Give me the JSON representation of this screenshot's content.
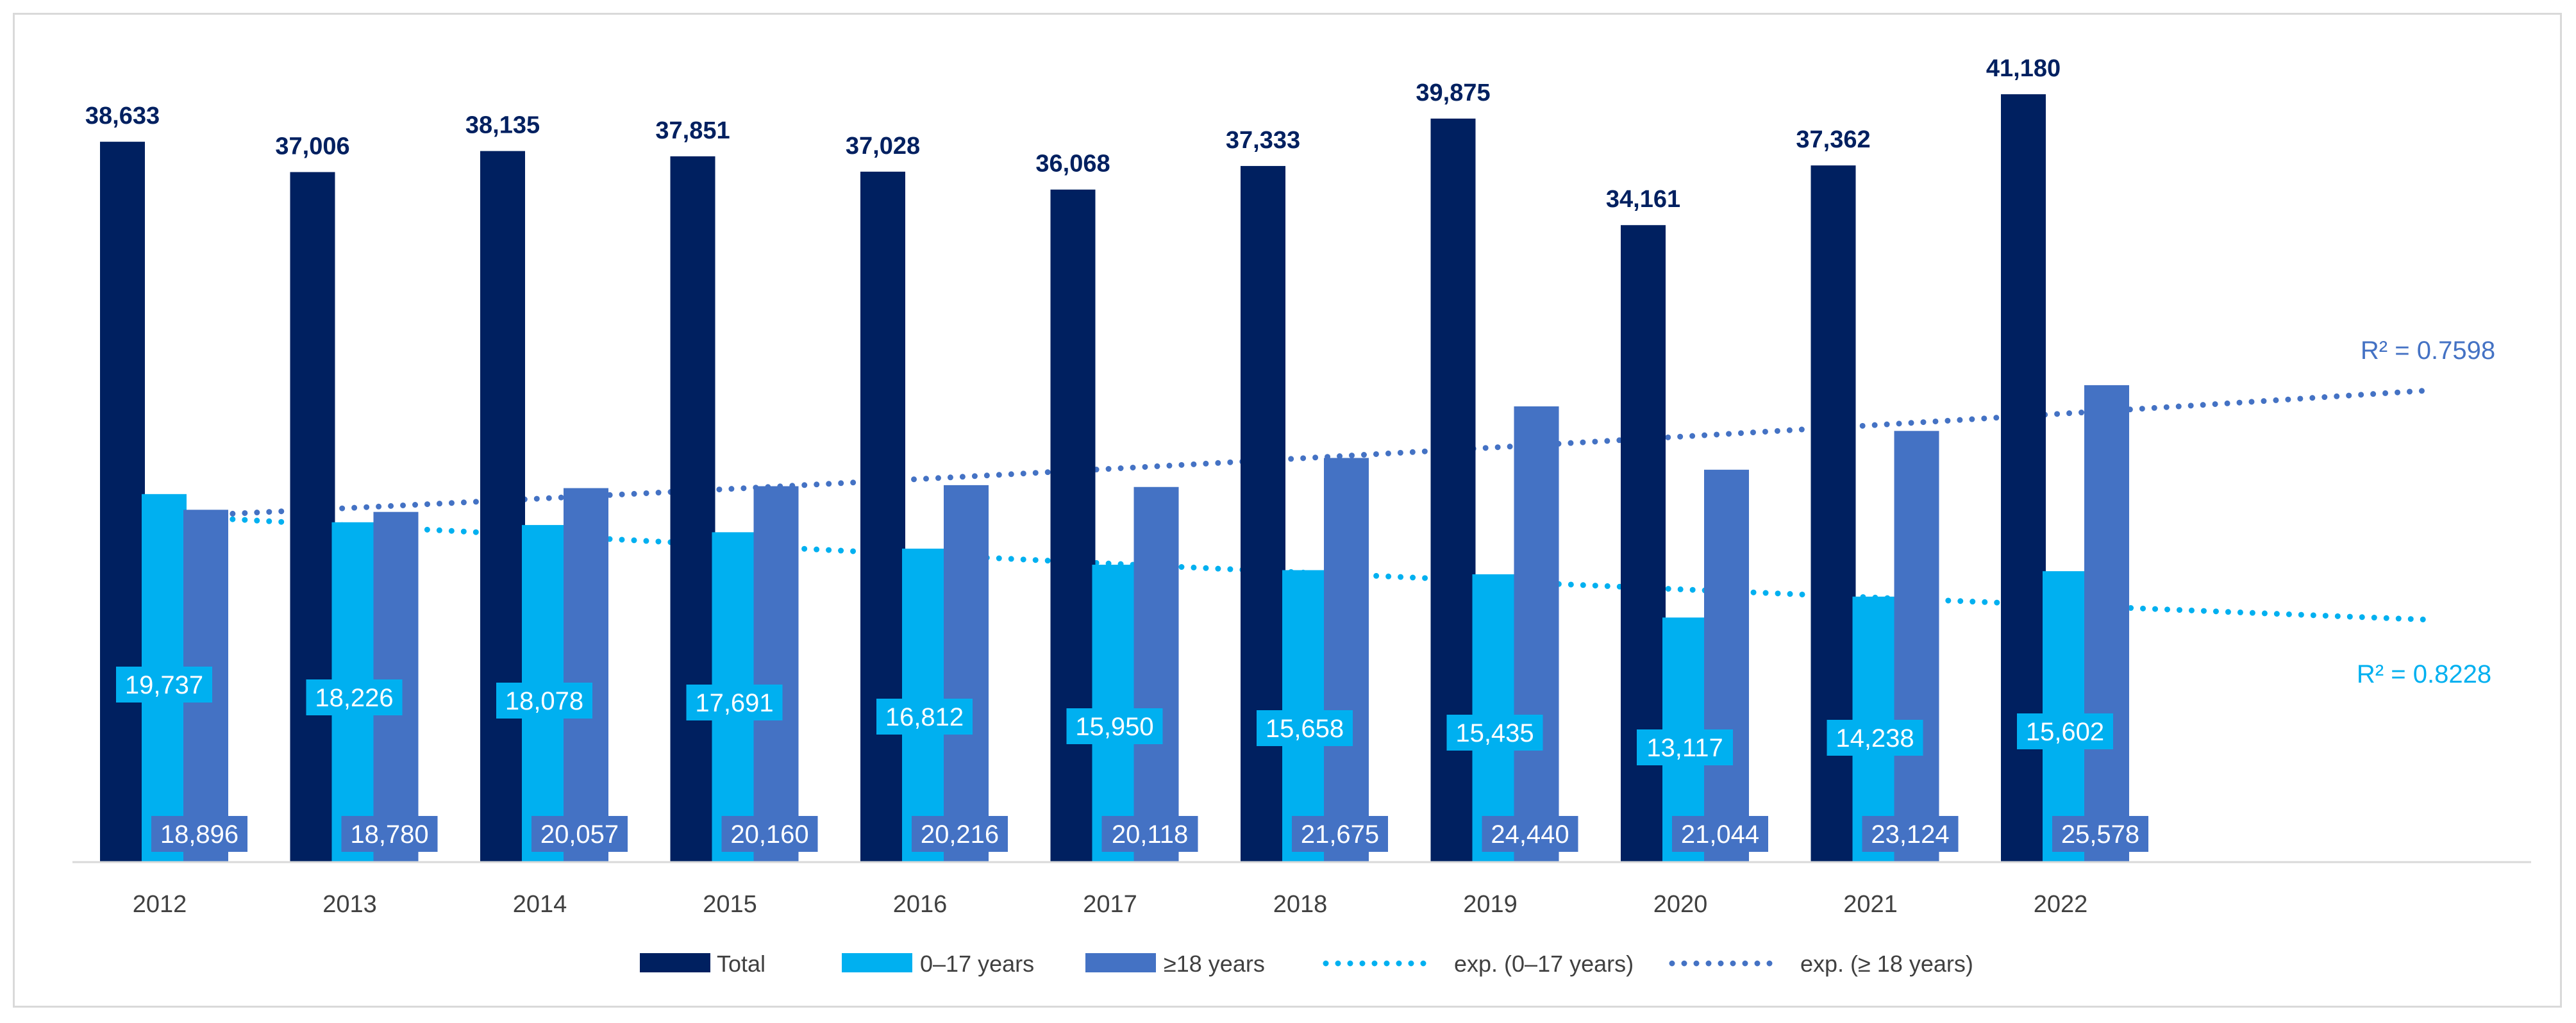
{
  "chart_data": {
    "type": "bar",
    "title": "",
    "xlabel": "",
    "ylabel": "",
    "ylim": [
      0,
      44000
    ],
    "grid": false,
    "legend_position": "bottom",
    "categories": [
      "2012",
      "2013",
      "2014",
      "2015",
      "2016",
      "2017",
      "2018",
      "2019",
      "2020",
      "2021",
      "2022"
    ],
    "series": [
      {
        "name": "Total",
        "color": "#002060",
        "values": [
          38633,
          37006,
          38135,
          37851,
          37028,
          36068,
          37333,
          39875,
          34161,
          37362,
          41180
        ],
        "labels": [
          "38,633",
          "37,006",
          "38,135",
          "37,851",
          "37,028",
          "36,068",
          "37,333",
          "39,875",
          "34,161",
          "37,362",
          "41,180"
        ]
      },
      {
        "name": "0–17 years",
        "color": "#00B0F0",
        "values": [
          19737,
          18226,
          18078,
          17691,
          16812,
          15950,
          15658,
          15435,
          13117,
          14238,
          15602
        ],
        "labels": [
          "19,737",
          "18,226",
          "18,078",
          "17,691",
          "16,812",
          "15,950",
          "15,658",
          "15,435",
          "13,117",
          "14,238",
          "15,602"
        ]
      },
      {
        "name": "≥18 years",
        "color": "#4472C4",
        "values": [
          18896,
          18780,
          20057,
          20160,
          20216,
          20118,
          21675,
          24440,
          21044,
          23124,
          25578
        ],
        "labels": [
          "18,896",
          "18,780",
          "20,057",
          "20,160",
          "20,216",
          "20,118",
          "21,675",
          "24,440",
          "21,044",
          "23,124",
          "25,578"
        ]
      }
    ],
    "trendlines": [
      {
        "name": "exp. (0–17 years)",
        "type": "exponential",
        "color": "#00B0F0",
        "r_squared_label": "R² = 0.8228",
        "start_value": 18600,
        "end_value": 13000,
        "extends_to_category_index": 12
      },
      {
        "name": "exp. (≥ 18 years)",
        "type": "exponential",
        "color": "#4472C4",
        "r_squared_label": "R² = 0.7598",
        "start_value": 18500,
        "end_value": 25300,
        "extends_to_category_index": 12
      }
    ],
    "legend": [
      {
        "label": "Total",
        "style": "bar",
        "color": "#002060"
      },
      {
        "label": "0–17 years",
        "style": "bar",
        "color": "#00B0F0"
      },
      {
        "label": "≥18 years",
        "style": "bar",
        "color": "#4472C4"
      },
      {
        "label": "exp. (0–17 years)",
        "style": "dotted",
        "color": "#00B0F0"
      },
      {
        "label": "exp. (≥ 18 years)",
        "style": "dotted",
        "color": "#4472C4"
      }
    ]
  }
}
